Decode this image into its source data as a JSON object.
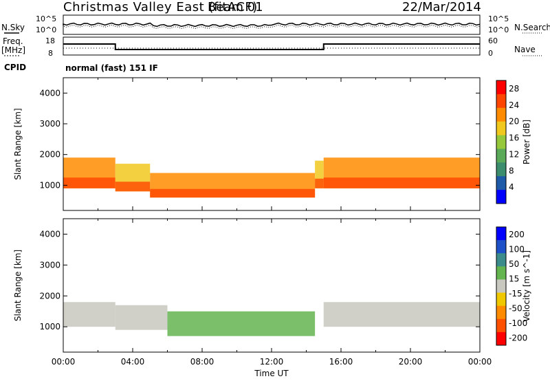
{
  "header": {
    "station": "Christmas Valley East (fitACF)",
    "beam": "Beam 01",
    "date": "22/Mar/2014"
  },
  "strip_labels": {
    "nsky": "N.Sky",
    "nsearch": "N.Search",
    "freq": "Freq.",
    "freq_unit": "[MHz]",
    "nave": "Nave",
    "cpid": "CPID",
    "mode": "normal (fast) 151 IF",
    "nsky_ticks": [
      "10^5",
      "10^0"
    ],
    "nsearch_ticks": [
      "10^5",
      "10^0"
    ],
    "freq_ticks": [
      "18",
      "8"
    ],
    "nave_ticks": [
      "60",
      "0"
    ]
  },
  "colors": {
    "power_scale": [
      "#0000ff",
      "#1e5aa8",
      "#3c8c6e",
      "#5aaa5a",
      "#96c83c",
      "#f0c81e",
      "#ff8c00",
      "#ff4600",
      "#ff0000"
    ],
    "velocity_scale": [
      "#0000ff",
      "#1e50c8",
      "#3c8c8c",
      "#64b450",
      "#c8c8c0",
      "#f0c800",
      "#ff8c00",
      "#ff5000",
      "#ff0000"
    ]
  },
  "chart_data": [
    {
      "type": "heatmap",
      "panel": "power",
      "xlabel": "",
      "ylabel": "Slant Range [km]",
      "xlim": [
        "00:00",
        "24:00"
      ],
      "ylim": [
        180,
        4500
      ],
      "y_ticks": [
        1000,
        2000,
        3000,
        4000
      ],
      "colorbar": {
        "label": "Power [dB]",
        "ticks": [
          4,
          8,
          12,
          16,
          20,
          24,
          28
        ],
        "range": [
          0,
          30
        ]
      },
      "bands": [
        {
          "t_start": 0.0,
          "t_end": 3.0,
          "range_low": 900,
          "range_high": 1900,
          "value": 22
        },
        {
          "t_start": 3.0,
          "t_end": 5.0,
          "range_low": 800,
          "range_high": 1700,
          "value": 20
        },
        {
          "t_start": 5.0,
          "t_end": 14.5,
          "range_low": 600,
          "range_high": 1400,
          "value": 24
        },
        {
          "t_start": 14.5,
          "t_end": 15.0,
          "range_low": 900,
          "range_high": 1800,
          "value": 20
        },
        {
          "t_start": 15.0,
          "t_end": 24.0,
          "range_low": 900,
          "range_high": 1900,
          "value": 22
        }
      ]
    },
    {
      "type": "heatmap",
      "panel": "velocity",
      "xlabel": "Time UT",
      "ylabel": "Slant Range [km]",
      "xlim": [
        "00:00",
        "24:00"
      ],
      "ylim": [
        180,
        4500
      ],
      "y_ticks": [
        1000,
        2000,
        3000,
        4000
      ],
      "x_ticks": [
        "00:00",
        "04:00",
        "08:00",
        "12:00",
        "16:00",
        "20:00",
        "00:00"
      ],
      "colorbar": {
        "label": "Velocity [m s^-1]",
        "ticks": [
          200,
          100,
          50,
          15,
          -15,
          -50,
          -100,
          -200
        ],
        "range": [
          -250,
          250
        ]
      },
      "bands": [
        {
          "t_start": 0.0,
          "t_end": 3.0,
          "range_low": 1000,
          "range_high": 1800,
          "value": 0
        },
        {
          "t_start": 3.0,
          "t_end": 6.0,
          "range_low": 900,
          "range_high": 1700,
          "value": 0
        },
        {
          "t_start": 6.0,
          "t_end": 14.5,
          "range_low": 700,
          "range_high": 1500,
          "value": 60
        },
        {
          "t_start": 15.0,
          "t_end": 24.0,
          "range_low": 1000,
          "range_high": 1800,
          "value": 0
        }
      ]
    }
  ]
}
